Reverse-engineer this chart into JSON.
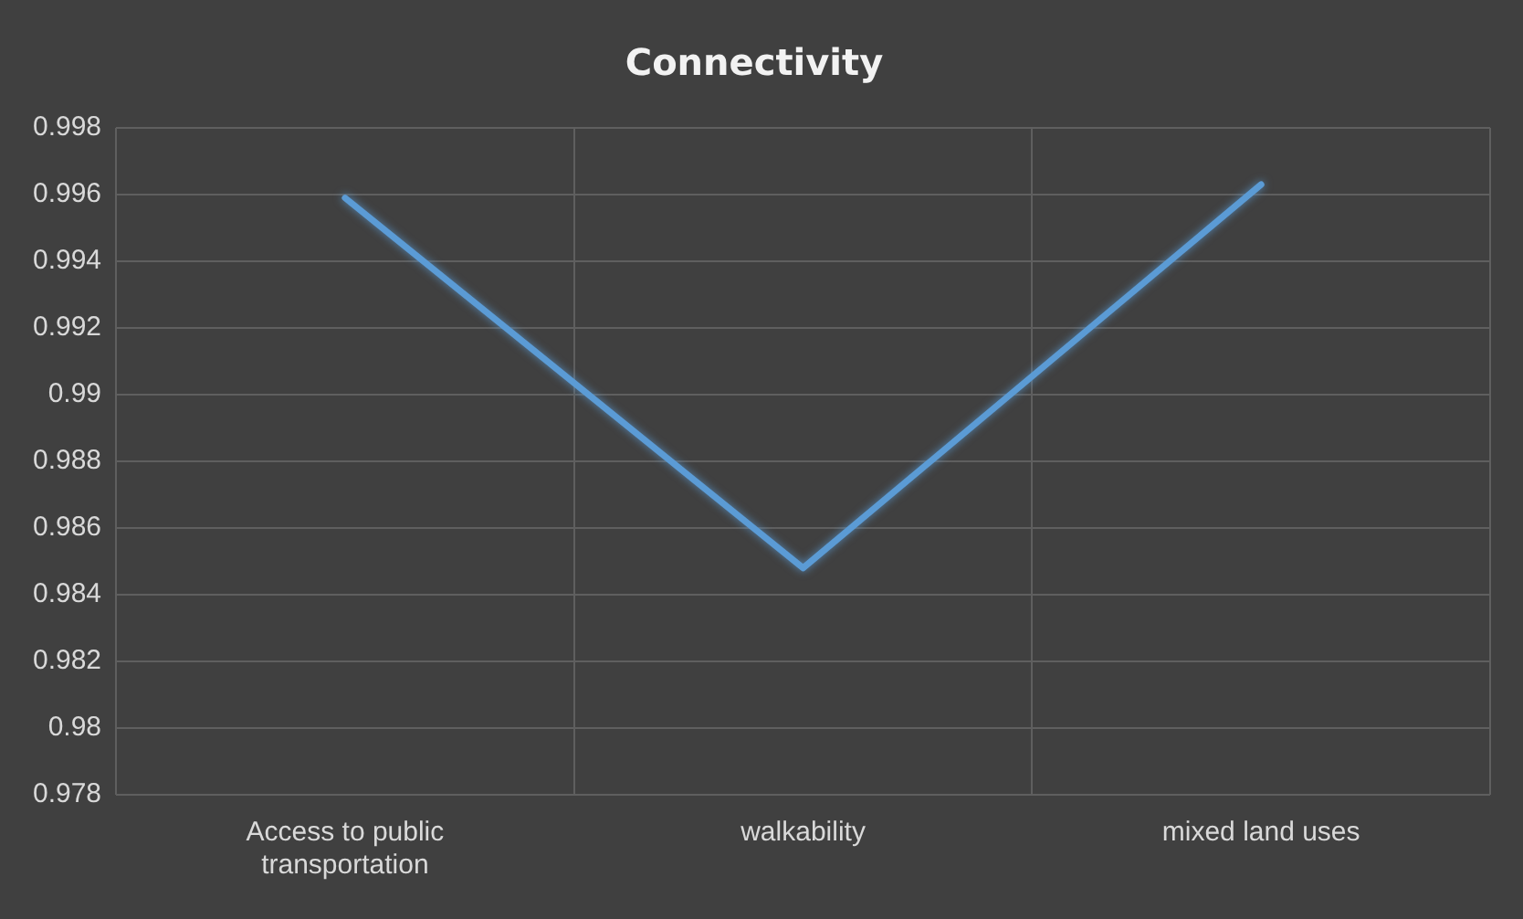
{
  "chart_data": {
    "type": "line",
    "title": "Connectivity",
    "categories": [
      "Access to public transportation",
      "walkability",
      "mixed land uses"
    ],
    "series": [
      {
        "color": "#5b9bd5",
        "values": [
          0.9959,
          0.9848,
          0.9963
        ]
      }
    ],
    "ylim": [
      0.978,
      0.998
    ],
    "yticks": [
      0.978,
      0.98,
      0.982,
      0.984,
      0.986,
      0.988,
      0.99,
      0.992,
      0.994,
      0.996,
      0.998
    ],
    "grid": true,
    "legend": false,
    "marker": "none",
    "line_style": "solid"
  }
}
